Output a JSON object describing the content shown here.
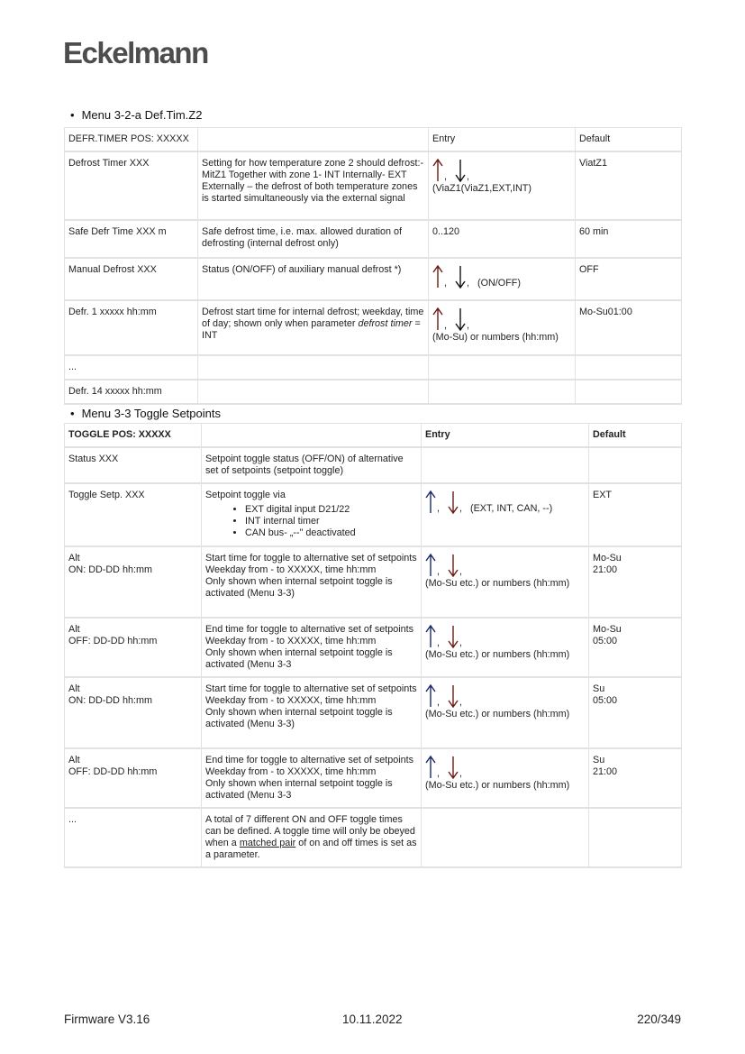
{
  "logo": "Eckelmann",
  "section1": {
    "title": "Menu 3-2-a Def.Tim.Z2",
    "header": [
      "DEFR.TIMER POS: XXXXX",
      "",
      "Entry",
      "Default"
    ],
    "rows": [
      {
        "name": "Defrost Timer XXX",
        "desc": "Setting for how temperature zone 2 should defrost:- MitZ1 Together with zone 1- INT Internally- EXT Externally – the defrost of both temperature zones is started simultaneously via the external signal",
        "entry": "(ViaZ1(ViaZ1,EXT,INT)",
        "arrows": true,
        "default": "ViatZ1"
      },
      {
        "name": "Safe Defr Time XXX m",
        "desc": "Safe defrost time, i.e. max. allowed duration of defrosting (internal defrost only)",
        "entry": "0..120",
        "arrows": false,
        "default": "60 min"
      },
      {
        "name": "Manual Defrost XXX",
        "desc": "Status (ON/OFF) of auxiliary manual defrost *)",
        "entry": "(ON/OFF)",
        "arrows": true,
        "default": "OFF"
      },
      {
        "name": "Defr. 1 xxxxx hh:mm",
        "desc": "Defrost start time for internal defrost; weekday, time of day; shown only when parameter ",
        "desc_italic": "defrost timer",
        "desc_tail": " = INT",
        "entry": "(Mo-Su) or numbers (hh:mm)",
        "arrows": true,
        "default": "Mo-Su01:00"
      },
      {
        "name": "...",
        "desc": "",
        "entry": "",
        "arrows": false,
        "default": ""
      },
      {
        "name": "Defr. 14 xxxxx hh:mm",
        "desc": "",
        "entry": "",
        "arrows": false,
        "default": ""
      }
    ]
  },
  "section2": {
    "title": "Menu 3-3 Toggle Setpoints",
    "header": [
      "TOGGLE POS: XXXXX",
      "",
      "Entry",
      "Default"
    ],
    "rows": [
      {
        "name": "Status XXX",
        "desc": "Setpoint toggle status (OFF/ON) of alternative set of setpoints (setpoint toggle)",
        "entry": "",
        "arrows": false,
        "default": ""
      },
      {
        "name": "Toggle Setp. XXX",
        "desc": "Setpoint toggle via",
        "bullets": [
          "EXT digital input D21/22",
          "INT internal timer",
          "CAN bus- „--\" deactivated"
        ],
        "entry": "(EXT, INT, CAN, --)",
        "arrows": true,
        "default": "EXT"
      },
      {
        "name": "Alt",
        "name2": "ON: DD-DD hh:mm",
        "desc": "Start time for toggle to alternative set of setpoints",
        "desc2": "Weekday from - to XXXXX, time hh:mm",
        "desc3": "Only shown when internal setpoint toggle is activated (Menu 3-3)",
        "entry": "(Mo-Su etc.) or numbers (hh:mm)",
        "arrows": true,
        "default": "Mo-Su",
        "default2": "21:00"
      },
      {
        "name": "Alt",
        "name2": "OFF: DD-DD hh:mm",
        "desc": "End time for toggle to alternative set of setpoints",
        "desc2": "Weekday from - to XXXXX, time hh:mm",
        "desc3": "Only shown when internal setpoint toggle is activated (Menu 3-3",
        "entry": "(Mo-Su etc.) or numbers (hh:mm)",
        "arrows": true,
        "default": "Mo-Su",
        "default2": "05:00"
      },
      {
        "name": "Alt",
        "name2": "ON: DD-DD hh:mm",
        "desc": "Start time for toggle to alternative set of setpoints",
        "desc2": "Weekday from - to XXXXX, time hh:mm",
        "desc3": "Only shown when internal setpoint toggle is activated (Menu 3-3)",
        "entry": "(Mo-Su etc.) or numbers (hh:mm)",
        "arrows": true,
        "default": "Su",
        "default2": "05:00"
      },
      {
        "name": "Alt",
        "name2": "OFF: DD-DD hh:mm",
        "desc": "End time for toggle to alternative set of setpoints",
        "desc2": "Weekday from - to XXXXX, time hh:mm",
        "desc3": "Only shown when internal setpoint toggle is activated (Menu 3-3",
        "entry": "(Mo-Su etc.) or numbers (hh:mm)",
        "arrows": true,
        "default": "Su",
        "default2": "21:00"
      },
      {
        "name": "...",
        "desc": "A total of 7 different ON and OFF toggle times can be defined. A toggle time will only be obeyed when a ",
        "desc_underline": "matched pair",
        "desc_tail": " of on and off times is set as a parameter.",
        "entry": "",
        "arrows": false,
        "default": ""
      }
    ]
  },
  "colors": {
    "arrow_up_t1": "#6b1a12",
    "arrow_down_t1": "#111111",
    "arrow_up_t2": "#1a2a6b",
    "arrow_down_t2": "#6b1a12"
  },
  "footer": {
    "left": "Firmware V3.16",
    "center": "10.11.2022",
    "right": "220/349"
  }
}
